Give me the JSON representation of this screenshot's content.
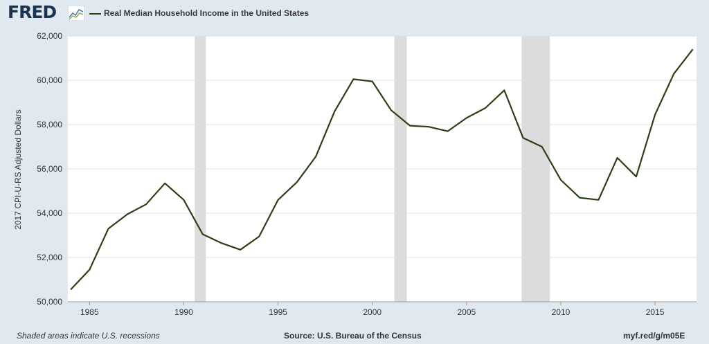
{
  "header": {
    "logo_text": "FRED",
    "logo_icon": "fred-chart-icon",
    "series_legend": "Real Median Household Income in the United States"
  },
  "footer": {
    "recession_note": "Shaded areas indicate U.S. recessions",
    "source": "Source: U.S. Bureau of the Census",
    "short_url": "myf.red/g/m05E"
  },
  "colors": {
    "line": "#2b3f17",
    "recession_shade": "#dcdcdc",
    "plot_background": "#ffffff",
    "page_background": "#e1e9f0",
    "gridline": "#e0e0e0",
    "logo": "#1b3350"
  },
  "chart_data": {
    "type": "line",
    "title": "",
    "xlabel": "",
    "ylabel": "2017 CPI-U-RS Adjusted Dollars",
    "x": [
      1984,
      1985,
      1986,
      1987,
      1988,
      1989,
      1990,
      1991,
      1992,
      1993,
      1994,
      1995,
      1996,
      1997,
      1998,
      1999,
      2000,
      2001,
      2002,
      2003,
      2004,
      2005,
      2006,
      2007,
      2008,
      2009,
      2010,
      2011,
      2012,
      2013,
      2014,
      2015,
      2016,
      2017
    ],
    "series": [
      {
        "name": "Real Median Household Income in the United States",
        "values": [
          50550,
          51450,
          53300,
          53950,
          54400,
          55350,
          54600,
          53050,
          52650,
          52350,
          52950,
          54600,
          55400,
          56550,
          58600,
          60050,
          59950,
          58650,
          57950,
          57900,
          57700,
          58300,
          58750,
          59550,
          57400,
          57000,
          55500,
          54700,
          54600,
          56500,
          55650,
          58450,
          60300,
          61400
        ]
      }
    ],
    "recessions": [
      [
        1990.58,
        1991.17
      ],
      [
        2001.17,
        2001.83
      ],
      [
        2007.92,
        2009.42
      ]
    ],
    "xlim": [
      1983.85,
      2017.2
    ],
    "ylim": [
      50000,
      62000
    ],
    "x_ticks": [
      1985,
      1990,
      1995,
      2000,
      2005,
      2010,
      2015
    ],
    "x_tick_labels": [
      "1985",
      "1990",
      "1995",
      "2000",
      "2005",
      "2010",
      "2015"
    ],
    "y_ticks": [
      50000,
      52000,
      54000,
      56000,
      58000,
      60000,
      62000
    ],
    "y_tick_labels": [
      "50,000",
      "52,000",
      "54,000",
      "56,000",
      "58,000",
      "60,000",
      "62,000"
    ],
    "grid": true,
    "legend_position": "top-left"
  }
}
